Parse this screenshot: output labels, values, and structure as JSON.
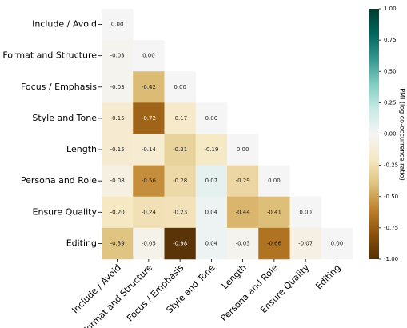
{
  "chart_data": {
    "type": "heatmap",
    "categories": [
      "Include / Avoid",
      "Format and Structure",
      "Focus / Emphasis",
      "Style and Tone",
      "Length",
      "Persona and Role",
      "Ensure Quality",
      "Editing"
    ],
    "values": [
      [
        0.0,
        null,
        null,
        null,
        null,
        null,
        null,
        null
      ],
      [
        -0.03,
        0.0,
        null,
        null,
        null,
        null,
        null,
        null
      ],
      [
        -0.03,
        -0.42,
        0.0,
        null,
        null,
        null,
        null,
        null
      ],
      [
        -0.15,
        -0.72,
        -0.17,
        0.0,
        null,
        null,
        null,
        null
      ],
      [
        -0.15,
        -0.14,
        -0.31,
        -0.19,
        0.0,
        null,
        null,
        null
      ],
      [
        -0.08,
        -0.56,
        -0.28,
        0.07,
        -0.29,
        0.0,
        null,
        null
      ],
      [
        -0.2,
        -0.24,
        -0.23,
        0.04,
        -0.44,
        -0.41,
        0.0,
        null
      ],
      [
        -0.39,
        -0.05,
        -0.98,
        0.04,
        -0.03,
        -0.66,
        -0.07,
        0.0
      ]
    ],
    "value_labels": [
      [
        "0.00",
        null,
        null,
        null,
        null,
        null,
        null,
        null
      ],
      [
        "-0.03",
        "0.00",
        null,
        null,
        null,
        null,
        null,
        null
      ],
      [
        "-0.03",
        "-0.42",
        "0.00",
        null,
        null,
        null,
        null,
        null
      ],
      [
        "-0.15",
        "-0.72",
        "-0.17",
        "0.00",
        null,
        null,
        null,
        null
      ],
      [
        "-0.15",
        "-0.14",
        "-0.31",
        "-0.19",
        "0.00",
        null,
        null,
        null
      ],
      [
        "-0.08",
        "-0.56",
        "-0.28",
        "0.07",
        "-0.29",
        "0.00",
        null,
        null
      ],
      [
        "-0.20",
        "-0.24",
        "-0.23",
        "0.04",
        "-0.44",
        "-0.41",
        "0.00",
        null
      ],
      [
        "-0.39",
        "-0.05",
        "-0.98",
        "0.04",
        "-0.03",
        "-0.66",
        "-0.07",
        "0.00"
      ]
    ],
    "colorbar_label": "PMI (log co-occurrence ratio)",
    "clim": [
      -1,
      1
    ],
    "cticks": [
      {
        "value": -1,
        "label": "-1.00"
      },
      {
        "value": -0.75,
        "label": "-0.75"
      },
      {
        "value": -0.5,
        "label": "-0.50"
      },
      {
        "value": -0.25,
        "label": "-0.25"
      },
      {
        "value": 0,
        "label": "0.00"
      },
      {
        "value": 0.25,
        "label": "0.25"
      },
      {
        "value": 0.5,
        "label": "0.50"
      },
      {
        "value": 0.75,
        "label": "0.75"
      },
      {
        "value": 1,
        "label": "1.00"
      }
    ],
    "colormap": [
      "#543005",
      "#8c510a",
      "#bf812d",
      "#dfc27d",
      "#f6e8c3",
      "#f5f5f5",
      "#c7eae5",
      "#80cdc1",
      "#35978f",
      "#01665e",
      "#003c30"
    ]
  }
}
